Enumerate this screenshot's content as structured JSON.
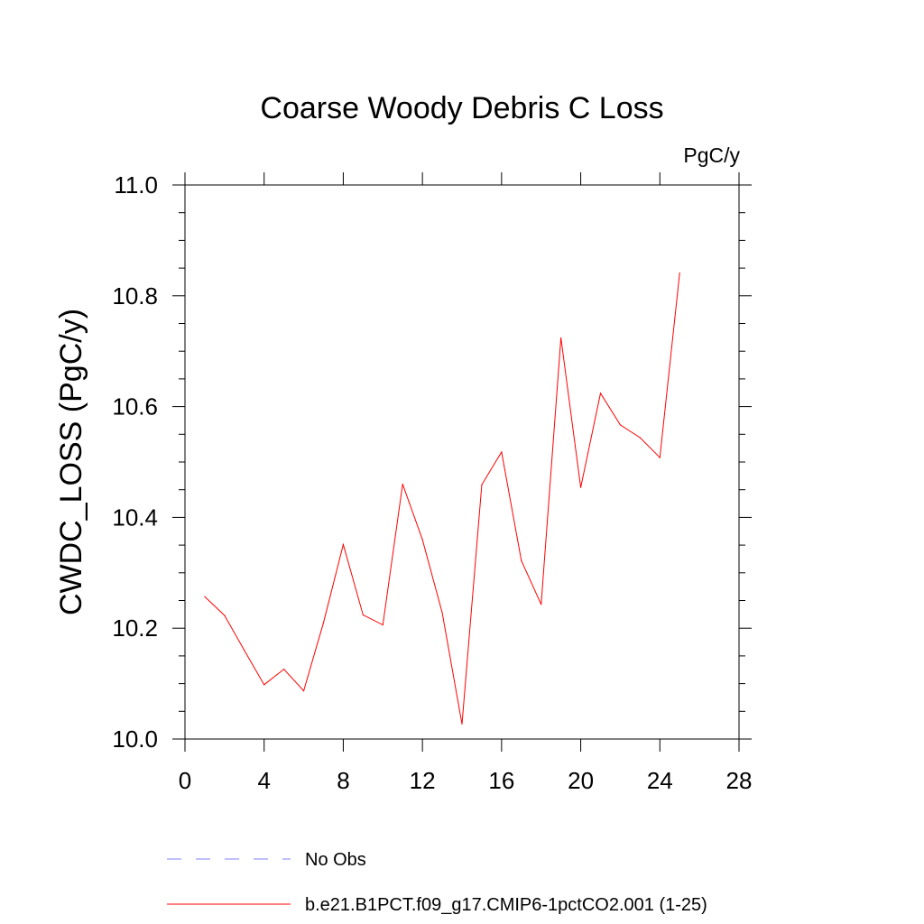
{
  "chart_data": {
    "type": "line",
    "title": "Coarse Woody Debris C Loss",
    "units_label": "PgC/y",
    "xlabel": "",
    "ylabel": "CWDC_LOSS  (PgC/y)",
    "xlim": [
      0,
      28
    ],
    "ylim": [
      10.0,
      11.0
    ],
    "x_ticks": [
      0,
      4,
      8,
      12,
      16,
      20,
      24,
      28
    ],
    "x_tick_labels": [
      "0",
      "4",
      "8",
      "12",
      "16",
      "20",
      "24",
      "28"
    ],
    "y_ticks": [
      10.0,
      10.2,
      10.4,
      10.6,
      10.8,
      11.0
    ],
    "y_tick_labels": [
      "10.0",
      "10.2",
      "10.4",
      "10.6",
      "10.8",
      "11.0"
    ],
    "grid": false,
    "series": [
      {
        "name": "b.e21.B1PCT.f09_g17.CMIP6-1pctCO2.001 (1-25)",
        "color": "#ff0000",
        "style": "solid",
        "x": [
          1,
          2,
          3,
          4,
          5,
          6,
          7,
          8,
          9,
          10,
          11,
          12,
          13,
          14,
          15,
          16,
          17,
          18,
          19,
          20,
          21,
          22,
          23,
          24,
          25
        ],
        "values": [
          10.257,
          10.223,
          10.16,
          10.098,
          10.126,
          10.087,
          10.21,
          10.351,
          10.224,
          10.206,
          10.46,
          10.36,
          10.228,
          10.027,
          10.459,
          10.518,
          10.322,
          10.243,
          10.724,
          10.454,
          10.624,
          10.567,
          10.544,
          10.508,
          10.841
        ]
      }
    ],
    "legend": {
      "placement": "bottom",
      "entries": [
        {
          "label": "No Obs",
          "color": "#8080ff",
          "style": "dashed"
        },
        {
          "label": "b.e21.B1PCT.f09_g17.CMIP6-1pctCO2.001 (1-25)",
          "color": "#ff0000",
          "style": "solid"
        }
      ]
    }
  }
}
